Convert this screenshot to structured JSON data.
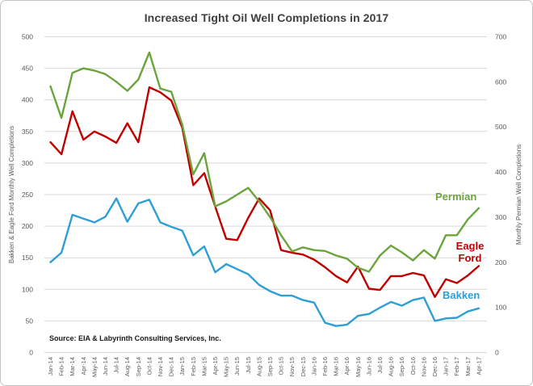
{
  "title": "Increased Tight Oil Well Completions in 2017",
  "source": "Source: EIA & Labyrinth Consulting Services, Inc.",
  "colors": {
    "bakken": "#2E9FD6",
    "eagle_ford": "#C00000",
    "permian": "#6CA43C",
    "grid": "#d9d9d9",
    "title_text": "#3f3f3f",
    "axis_text": "#595959"
  },
  "legend": {
    "permian_label": "Permian",
    "eagle_ford_label": "Eagle Ford",
    "bakken_label": "Bakken"
  },
  "chart_data": {
    "type": "line",
    "title": "Increased Tight Oil Well Completions in 2017",
    "x": [
      "Jan-14",
      "Feb-14",
      "Mar-14",
      "Apr-14",
      "May-14",
      "Jun-14",
      "Jul-14",
      "Aug-14",
      "Sep-14",
      "Oct-14",
      "Nov-14",
      "Dec-14",
      "Jan-15",
      "Feb-15",
      "Mar-15",
      "Apr-15",
      "May-15",
      "Jun-15",
      "Jul-15",
      "Aug-15",
      "Sep-15",
      "Oct-15",
      "Nov-15",
      "Dec-15",
      "Jan-16",
      "Feb-16",
      "Mar-16",
      "Apr-16",
      "May-16",
      "Jun-16",
      "Jul-16",
      "Aug-16",
      "Sep-16",
      "Oct-16",
      "Nov-16",
      "Dec-16",
      "Jan-17",
      "Feb-17",
      "Mar-17",
      "Apr-17"
    ],
    "series": [
      {
        "name": "Bakken",
        "axis": "left",
        "color": "#2E9FD6",
        "values": [
          143,
          158,
          218,
          212,
          206,
          215,
          244,
          207,
          236,
          242,
          206,
          199,
          193,
          154,
          168,
          127,
          140,
          132,
          124,
          107,
          97,
          90,
          90,
          83,
          79,
          47,
          42,
          44,
          58,
          61,
          71,
          80,
          74,
          83,
          87,
          50,
          54,
          55,
          65,
          70
        ]
      },
      {
        "name": "Eagle Ford",
        "axis": "left",
        "color": "#C00000",
        "values": [
          333,
          314,
          382,
          337,
          350,
          342,
          332,
          363,
          333,
          420,
          412,
          399,
          356,
          265,
          284,
          231,
          180,
          178,
          213,
          244,
          225,
          162,
          158,
          155,
          147,
          135,
          121,
          111,
          136,
          101,
          99,
          121,
          121,
          126,
          122,
          88,
          116,
          110,
          122,
          137
        ]
      },
      {
        "name": "Permian",
        "axis": "right",
        "color": "#6CA43C",
        "values": [
          590,
          520,
          620,
          630,
          625,
          617,
          600,
          580,
          605,
          665,
          585,
          578,
          505,
          395,
          442,
          324,
          335,
          350,
          365,
          335,
          300,
          260,
          224,
          233,
          227,
          225,
          215,
          208,
          188,
          179,
          215,
          237,
          222,
          204,
          227,
          208,
          260,
          260,
          295,
          320
        ]
      }
    ],
    "left_axis": {
      "title": "Bakken & Eagle Ford Monthly Well Completions",
      "min": 0,
      "max": 500,
      "step": 50,
      "ticks": [
        0,
        50,
        100,
        150,
        200,
        250,
        300,
        350,
        400,
        450,
        500
      ]
    },
    "right_axis": {
      "title": "Monthly Permian Well Completions",
      "min": 0,
      "max": 700,
      "step": 100,
      "ticks": [
        0,
        100,
        200,
        300,
        400,
        500,
        600,
        700
      ]
    },
    "grid": true,
    "legend_position": "inside-right"
  }
}
